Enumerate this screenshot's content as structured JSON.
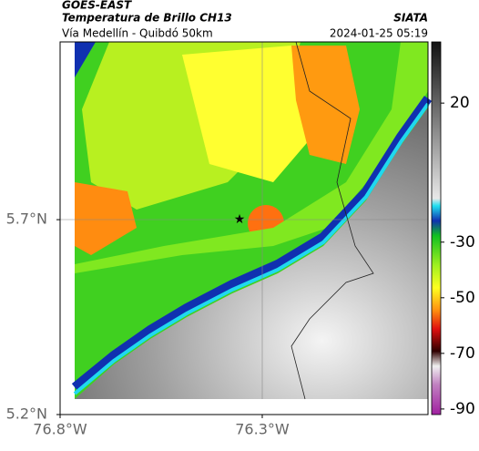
{
  "header": {
    "title": "GOES-EAST",
    "subtitle": "Temperatura de Brillo CH13",
    "source": "SIATA",
    "route": "Vía Medellín - Quibdó 50km",
    "timestamp": "2024-01-25 05:19"
  },
  "map": {
    "xlim": [
      -76.8,
      -75.89
    ],
    "ylim": [
      5.2,
      6.156
    ],
    "xticks": [
      {
        "value": -76.8,
        "label": "76.8°W"
      },
      {
        "value": -76.3,
        "label": "76.3°W"
      }
    ],
    "yticks": [
      {
        "value": 5.2,
        "label": "5.2°N"
      },
      {
        "value": 5.7,
        "label": "5.7°N"
      }
    ]
  },
  "colorbar": {
    "lim": [
      42,
      -92
    ],
    "ticks": [
      20,
      -30,
      -50,
      -70,
      -90
    ]
  }
}
